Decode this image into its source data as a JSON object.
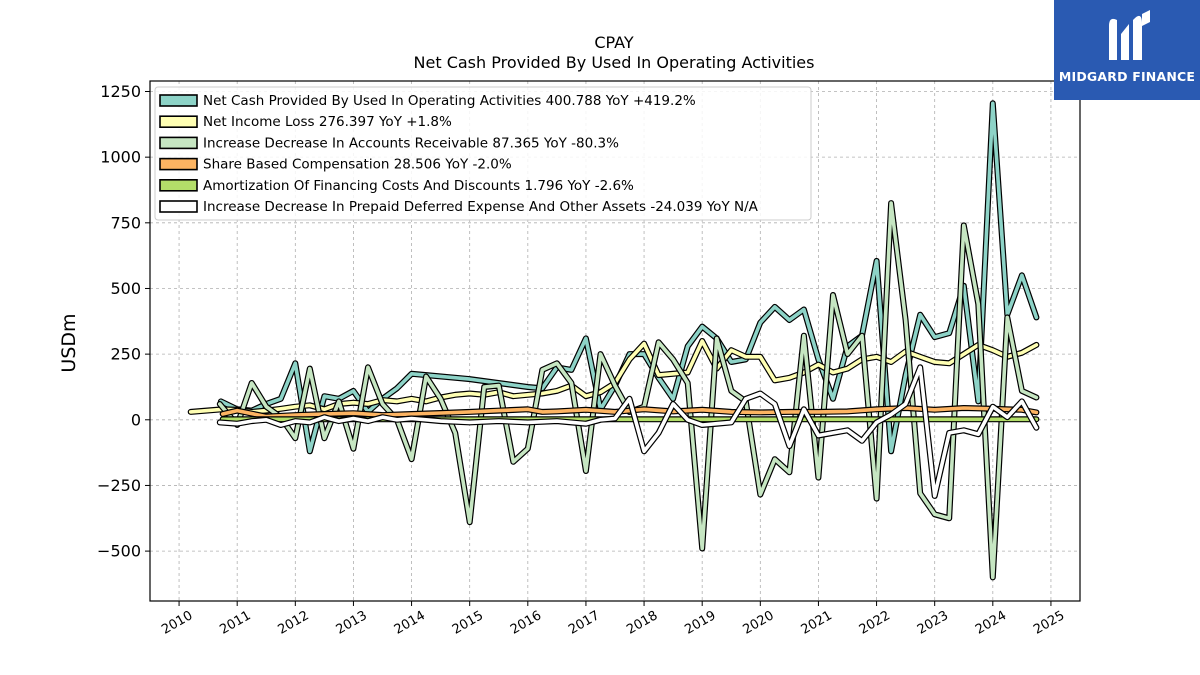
{
  "chart_data": {
    "type": "line",
    "title": "CPAY",
    "subtitle": "Net Cash Provided By Used In Operating Activities",
    "ylabel": "USDm",
    "xlim": [
      2009.5,
      2025.5
    ],
    "ylim": [
      -690,
      1290
    ],
    "yticks": [
      1250,
      1000,
      750,
      500,
      250,
      0,
      -250,
      -500
    ],
    "ytick_labels": [
      "1250",
      "1000",
      "750",
      "500",
      "250",
      "0",
      "−250",
      "−500"
    ],
    "xticks": [
      2010,
      2011,
      2012,
      2013,
      2014,
      2015,
      2016,
      2017,
      2018,
      2019,
      2020,
      2021,
      2022,
      2023,
      2024,
      2025
    ],
    "xtick_labels": [
      "2010",
      "2011",
      "2012",
      "2013",
      "2014",
      "2015",
      "2016",
      "2017",
      "2018",
      "2019",
      "2020",
      "2021",
      "2022",
      "2023",
      "2024",
      "2025"
    ],
    "grid": true,
    "legend_position": "top-left",
    "series": [
      {
        "name": "Net Cash Provided By Used In Operating Activities  400.788 YoY +419.2%",
        "color": "#8dd3c7",
        "values": [
          [
            2010.72,
            70
          ],
          [
            2011.0,
            40
          ],
          [
            2011.25,
            35
          ],
          [
            2011.5,
            60
          ],
          [
            2011.75,
            80
          ],
          [
            2012.0,
            215
          ],
          [
            2012.25,
            -120
          ],
          [
            2012.5,
            90
          ],
          [
            2012.75,
            80
          ],
          [
            2013.0,
            110
          ],
          [
            2013.25,
            30
          ],
          [
            2013.5,
            80
          ],
          [
            2013.75,
            120
          ],
          [
            2014.0,
            175
          ],
          [
            2015.0,
            155
          ],
          [
            2016.0,
            125
          ],
          [
            2016.25,
            120
          ],
          [
            2016.5,
            200
          ],
          [
            2016.75,
            190
          ],
          [
            2017.0,
            310
          ],
          [
            2017.25,
            40
          ],
          [
            2017.5,
            130
          ],
          [
            2017.75,
            250
          ],
          [
            2018.0,
            250
          ],
          [
            2018.25,
            160
          ],
          [
            2018.5,
            80
          ],
          [
            2018.75,
            280
          ],
          [
            2019.0,
            355
          ],
          [
            2019.25,
            310
          ],
          [
            2019.5,
            220
          ],
          [
            2019.75,
            230
          ],
          [
            2020.0,
            370
          ],
          [
            2020.25,
            430
          ],
          [
            2020.5,
            380
          ],
          [
            2020.75,
            420
          ],
          [
            2021.0,
            230
          ],
          [
            2021.25,
            80
          ],
          [
            2021.5,
            280
          ],
          [
            2021.75,
            320
          ],
          [
            2022.0,
            605
          ],
          [
            2022.25,
            -120
          ],
          [
            2022.5,
            170
          ],
          [
            2022.75,
            400
          ],
          [
            2023.0,
            315
          ],
          [
            2023.25,
            330
          ],
          [
            2023.5,
            510
          ],
          [
            2023.75,
            70
          ],
          [
            2024.0,
            1205
          ],
          [
            2024.25,
            400
          ],
          [
            2024.5,
            550
          ],
          [
            2024.75,
            390
          ]
        ]
      },
      {
        "name": "Net Income Loss  276.397 YoY +1.8%",
        "color": "#ffffb3",
        "values": [
          [
            2010.2,
            30
          ],
          [
            2010.75,
            40
          ],
          [
            2011.0,
            38
          ],
          [
            2011.25,
            30
          ],
          [
            2011.5,
            35
          ],
          [
            2011.75,
            42
          ],
          [
            2012.0,
            50
          ],
          [
            2012.25,
            55
          ],
          [
            2012.5,
            40
          ],
          [
            2012.75,
            60
          ],
          [
            2013.0,
            65
          ],
          [
            2013.25,
            60
          ],
          [
            2013.5,
            75
          ],
          [
            2013.75,
            70
          ],
          [
            2014.0,
            80
          ],
          [
            2014.25,
            70
          ],
          [
            2014.5,
            85
          ],
          [
            2014.75,
            95
          ],
          [
            2015.0,
            100
          ],
          [
            2015.25,
            95
          ],
          [
            2015.5,
            105
          ],
          [
            2015.75,
            90
          ],
          [
            2016.0,
            95
          ],
          [
            2016.25,
            100
          ],
          [
            2016.5,
            110
          ],
          [
            2016.75,
            130
          ],
          [
            2017.0,
            90
          ],
          [
            2017.25,
            105
          ],
          [
            2017.5,
            140
          ],
          [
            2017.75,
            230
          ],
          [
            2018.0,
            290
          ],
          [
            2018.25,
            170
          ],
          [
            2018.5,
            175
          ],
          [
            2018.75,
            180
          ],
          [
            2019.0,
            300
          ],
          [
            2019.25,
            195
          ],
          [
            2019.5,
            265
          ],
          [
            2019.75,
            240
          ],
          [
            2020.0,
            240
          ],
          [
            2020.25,
            150
          ],
          [
            2020.5,
            160
          ],
          [
            2020.75,
            180
          ],
          [
            2021.0,
            210
          ],
          [
            2021.25,
            180
          ],
          [
            2021.5,
            195
          ],
          [
            2021.75,
            230
          ],
          [
            2022.0,
            240
          ],
          [
            2022.25,
            220
          ],
          [
            2022.5,
            260
          ],
          [
            2022.75,
            240
          ],
          [
            2023.0,
            220
          ],
          [
            2023.25,
            215
          ],
          [
            2023.5,
            250
          ],
          [
            2023.75,
            285
          ],
          [
            2024.0,
            265
          ],
          [
            2024.25,
            240
          ],
          [
            2024.5,
            255
          ],
          [
            2024.75,
            285
          ]
        ]
      },
      {
        "name": "Increase Decrease In Accounts Receivable  87.365 YoY -80.3%",
        "color": "#c6e6c2",
        "values": [
          [
            2010.7,
            60
          ],
          [
            2011.0,
            -20
          ],
          [
            2011.25,
            140
          ],
          [
            2011.5,
            50
          ],
          [
            2011.75,
            10
          ],
          [
            2012.0,
            -70
          ],
          [
            2012.25,
            195
          ],
          [
            2012.5,
            -70
          ],
          [
            2012.75,
            70
          ],
          [
            2013.0,
            -110
          ],
          [
            2013.25,
            200
          ],
          [
            2013.5,
            60
          ],
          [
            2013.75,
            0
          ],
          [
            2014.0,
            -150
          ],
          [
            2014.25,
            165
          ],
          [
            2014.5,
            80
          ],
          [
            2014.75,
            -50
          ],
          [
            2015.0,
            -390
          ],
          [
            2015.25,
            125
          ],
          [
            2015.5,
            130
          ],
          [
            2015.75,
            -160
          ],
          [
            2016.0,
            -110
          ],
          [
            2016.25,
            190
          ],
          [
            2016.5,
            215
          ],
          [
            2016.75,
            140
          ],
          [
            2017.0,
            -195
          ],
          [
            2017.25,
            250
          ],
          [
            2017.5,
            130
          ],
          [
            2017.75,
            30
          ],
          [
            2018.0,
            50
          ],
          [
            2018.25,
            295
          ],
          [
            2018.5,
            230
          ],
          [
            2018.75,
            140
          ],
          [
            2019.0,
            -490
          ],
          [
            2019.25,
            310
          ],
          [
            2019.5,
            110
          ],
          [
            2019.75,
            70
          ],
          [
            2020.0,
            -285
          ],
          [
            2020.25,
            -150
          ],
          [
            2020.5,
            -200
          ],
          [
            2020.75,
            320
          ],
          [
            2021.0,
            -220
          ],
          [
            2021.25,
            475
          ],
          [
            2021.5,
            250
          ],
          [
            2021.75,
            320
          ],
          [
            2022.0,
            -300
          ],
          [
            2022.25,
            825
          ],
          [
            2022.5,
            380
          ],
          [
            2022.75,
            -280
          ],
          [
            2023.0,
            -360
          ],
          [
            2023.25,
            -375
          ],
          [
            2023.5,
            740
          ],
          [
            2023.75,
            440
          ],
          [
            2024.0,
            -600
          ],
          [
            2024.25,
            390
          ],
          [
            2024.5,
            110
          ],
          [
            2024.75,
            85
          ]
        ]
      },
      {
        "name": "Share Based Compensation  28.506 YoY -2.0%",
        "color": "#fdb462",
        "values": [
          [
            2010.75,
            22
          ],
          [
            2011.0,
            35
          ],
          [
            2011.5,
            12
          ],
          [
            2012.0,
            18
          ],
          [
            2012.5,
            22
          ],
          [
            2013.0,
            25
          ],
          [
            2013.5,
            18
          ],
          [
            2014.0,
            22
          ],
          [
            2014.5,
            26
          ],
          [
            2015.0,
            30
          ],
          [
            2015.5,
            35
          ],
          [
            2016.0,
            40
          ],
          [
            2016.25,
            30
          ],
          [
            2016.5,
            32
          ],
          [
            2016.75,
            35
          ],
          [
            2017.0,
            38
          ],
          [
            2017.5,
            30
          ],
          [
            2018.0,
            40
          ],
          [
            2018.5,
            32
          ],
          [
            2019.0,
            38
          ],
          [
            2019.5,
            30
          ],
          [
            2020.0,
            28
          ],
          [
            2020.5,
            30
          ],
          [
            2021.0,
            30
          ],
          [
            2021.5,
            32
          ],
          [
            2022.0,
            40
          ],
          [
            2022.5,
            45
          ],
          [
            2023.0,
            38
          ],
          [
            2023.5,
            45
          ],
          [
            2024.0,
            42
          ],
          [
            2024.5,
            38
          ],
          [
            2024.75,
            28
          ]
        ]
      },
      {
        "name": "Amortization Of Financing Costs And Discounts  1.796 YoY -2.6%",
        "color": "#b3de69",
        "values": [
          [
            2010.75,
            2
          ],
          [
            2012.0,
            2
          ],
          [
            2014.0,
            2
          ],
          [
            2016.0,
            2
          ],
          [
            2018.0,
            2
          ],
          [
            2020.0,
            2
          ],
          [
            2022.0,
            2
          ],
          [
            2024.0,
            2
          ],
          [
            2024.75,
            2
          ]
        ]
      },
      {
        "name": "Increase Decrease In Prepaid Deferred Expense And Other Assets  -24.039 YoY N/A",
        "color": "#ffffff",
        "values": [
          [
            2010.7,
            -10
          ],
          [
            2011.0,
            -15
          ],
          [
            2011.25,
            -5
          ],
          [
            2011.5,
            0
          ],
          [
            2011.75,
            -20
          ],
          [
            2012.0,
            -5
          ],
          [
            2012.25,
            -10
          ],
          [
            2012.5,
            10
          ],
          [
            2012.75,
            -5
          ],
          [
            2013.0,
            5
          ],
          [
            2013.25,
            -5
          ],
          [
            2013.5,
            10
          ],
          [
            2013.75,
            0
          ],
          [
            2014.0,
            5
          ],
          [
            2014.5,
            -5
          ],
          [
            2015.0,
            -10
          ],
          [
            2015.5,
            -5
          ],
          [
            2016.0,
            -10
          ],
          [
            2016.5,
            -5
          ],
          [
            2017.0,
            -15
          ],
          [
            2017.25,
            0
          ],
          [
            2017.5,
            5
          ],
          [
            2017.75,
            80
          ],
          [
            2018.0,
            -120
          ],
          [
            2018.25,
            -50
          ],
          [
            2018.5,
            60
          ],
          [
            2018.75,
            0
          ],
          [
            2019.0,
            -20
          ],
          [
            2019.25,
            -15
          ],
          [
            2019.5,
            -10
          ],
          [
            2019.75,
            80
          ],
          [
            2020.0,
            100
          ],
          [
            2020.25,
            60
          ],
          [
            2020.5,
            -100
          ],
          [
            2020.75,
            40
          ],
          [
            2021.0,
            -60
          ],
          [
            2021.25,
            -50
          ],
          [
            2021.5,
            -40
          ],
          [
            2021.75,
            -80
          ],
          [
            2022.0,
            -10
          ],
          [
            2022.25,
            20
          ],
          [
            2022.5,
            60
          ],
          [
            2022.75,
            200
          ],
          [
            2023.0,
            -290
          ],
          [
            2023.25,
            -50
          ],
          [
            2023.5,
            -40
          ],
          [
            2023.75,
            -55
          ],
          [
            2024.0,
            50
          ],
          [
            2024.25,
            10
          ],
          [
            2024.5,
            70
          ],
          [
            2024.75,
            -30
          ]
        ]
      }
    ]
  },
  "logo": {
    "text": "MIDGARD FINANCE",
    "icon": "midgard-m-logo-icon",
    "background": "#2a5ab2"
  }
}
